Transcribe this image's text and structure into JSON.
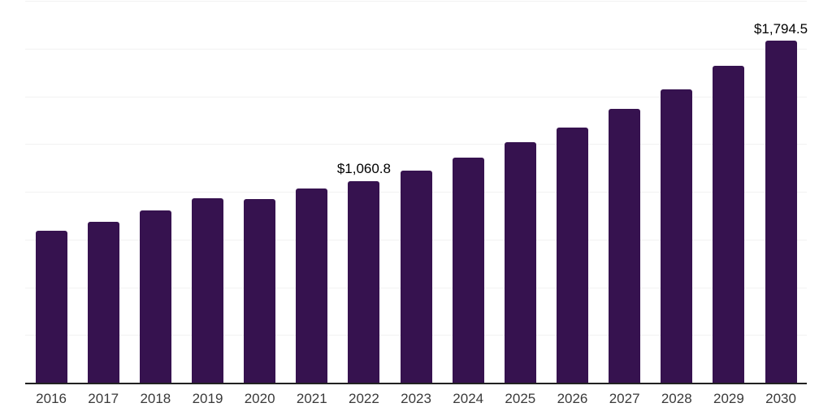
{
  "chart_data": {
    "type": "bar",
    "title": "",
    "xlabel": "",
    "ylabel": "",
    "categories": [
      "2016",
      "2017",
      "2018",
      "2019",
      "2020",
      "2021",
      "2022",
      "2023",
      "2024",
      "2025",
      "2026",
      "2027",
      "2028",
      "2029",
      "2030"
    ],
    "values": [
      798,
      849,
      908,
      972,
      967,
      1023,
      1060.8,
      1116,
      1184,
      1264,
      1341,
      1438,
      1540,
      1663,
      1794.5
    ],
    "value_labels": [
      "",
      "",
      "",
      "",
      "",
      "",
      "$1,060.8",
      "",
      "",
      "",
      "",
      "",
      "",
      "",
      "$1,794.5"
    ],
    "ylim": [
      0,
      2000
    ],
    "y_gridlines": [
      250,
      500,
      750,
      1000,
      1250,
      1500,
      1750,
      2000
    ],
    "grid": "horizontal",
    "legend": "none",
    "colors": {
      "bar": "#36124F",
      "gridline": "#F2F2F2",
      "axis_line": "#222222",
      "tick_label": "#3A3A3A",
      "value_label": "#000000",
      "background": "#FFFFFF"
    }
  }
}
